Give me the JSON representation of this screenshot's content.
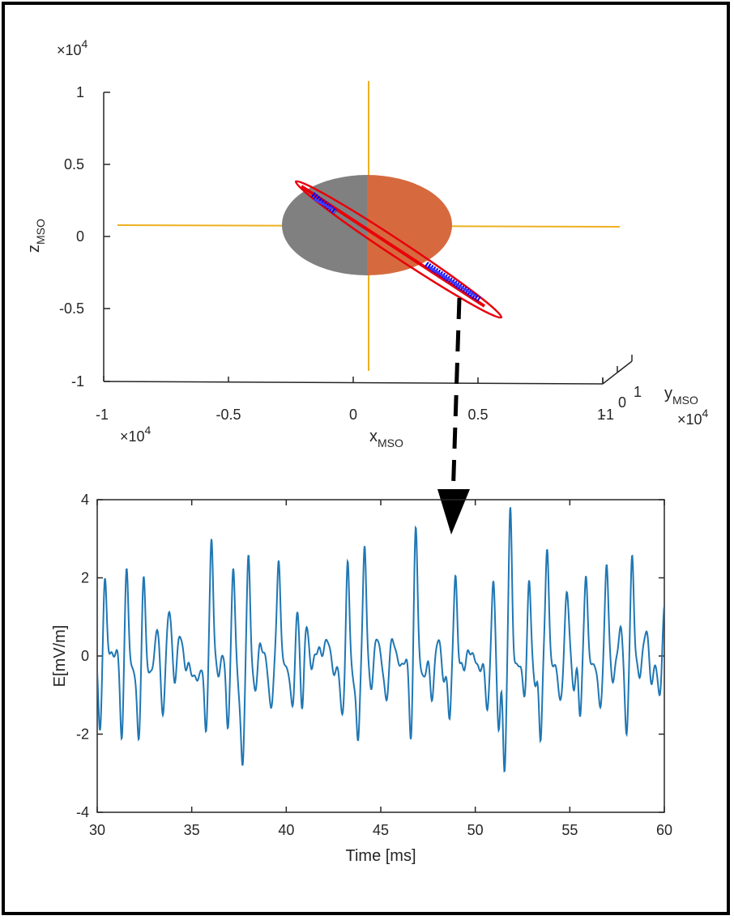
{
  "colors": {
    "frame": "#000000",
    "axis": "#262626",
    "orbit": "#e8000b",
    "measurement": "#0000ff",
    "dayside": "#d66a3e",
    "nightside": "#808080",
    "sun_line": "#edb120",
    "signal": "#1f77b4",
    "arrow": "#000000"
  },
  "chart_data": [
    {
      "type": "scatter",
      "title": "",
      "projection": "3d",
      "xlabel": "x",
      "xlabel_sub": "MSO",
      "ylabel": "y",
      "ylabel_sub": "MSO",
      "zlabel": "z",
      "zlabel_sub": "MSO",
      "x_exponent": "×10",
      "x_exponent_power": "4",
      "y_exponent": "×10",
      "y_exponent_power": "4",
      "z_exponent": "×10",
      "z_exponent_power": "4",
      "xlim": [
        -1,
        1.1
      ],
      "ylim": [
        -1,
        1
      ],
      "zlim": [
        -1,
        1
      ],
      "x_ticks": [
        "-1",
        "-0.5",
        "0",
        "0.5",
        "1"
      ],
      "y_ticks": [
        "-1",
        "0",
        "1"
      ],
      "z_ticks": [
        "1",
        "0.5",
        "0",
        "-0.5",
        "-1"
      ],
      "planet": {
        "center": [
          0,
          0,
          0
        ],
        "radius": 0.34,
        "dayside": "positive-x"
      },
      "orbit": {
        "description": "inclined elliptical orbit around planet"
      },
      "measurement_segments": 2
    },
    {
      "type": "line",
      "title": "",
      "xlabel": "Time [ms]",
      "ylabel": "E[mV/m]",
      "xlim": [
        30,
        60
      ],
      "ylim": [
        -4,
        4
      ],
      "x_ticks": [
        "30",
        "35",
        "40",
        "45",
        "50",
        "55",
        "60"
      ],
      "y_ticks": [
        "4",
        "2",
        "0",
        "-2",
        "-4"
      ],
      "pulses": [
        {
          "t": 30.15,
          "a": -1.9
        },
        {
          "t": 30.4,
          "a": 2.0
        },
        {
          "t": 30.95,
          "a": 0.2
        },
        {
          "t": 31.3,
          "a": -2.3
        },
        {
          "t": 31.55,
          "a": 2.4
        },
        {
          "t": 31.95,
          "a": -0.6
        },
        {
          "t": 32.2,
          "a": -2.1
        },
        {
          "t": 32.45,
          "a": 2.0
        },
        {
          "t": 32.75,
          "a": -0.5
        },
        {
          "t": 33.2,
          "a": 0.7
        },
        {
          "t": 33.45,
          "a": -1.5
        },
        {
          "t": 33.8,
          "a": 1.2
        },
        {
          "t": 34.1,
          "a": -0.7
        },
        {
          "t": 34.35,
          "a": 0.7
        },
        {
          "t": 34.7,
          "a": -0.4
        },
        {
          "t": 35.1,
          "a": -0.5
        },
        {
          "t": 35.35,
          "a": -0.7
        },
        {
          "t": 35.75,
          "a": -1.9
        },
        {
          "t": 36.05,
          "a": 2.9
        },
        {
          "t": 36.45,
          "a": -0.4
        },
        {
          "t": 36.9,
          "a": -1.8
        },
        {
          "t": 37.2,
          "a": 2.2
        },
        {
          "t": 37.5,
          "a": -0.9
        },
        {
          "t": 37.7,
          "a": -2.6
        },
        {
          "t": 38.0,
          "a": 2.4
        },
        {
          "t": 38.35,
          "a": -0.8
        },
        {
          "t": 38.6,
          "a": 0.2
        },
        {
          "t": 39.2,
          "a": -1.4
        },
        {
          "t": 39.6,
          "a": 2.6
        },
        {
          "t": 40.05,
          "a": -0.5
        },
        {
          "t": 40.35,
          "a": -1.4
        },
        {
          "t": 40.55,
          "a": 1.2
        },
        {
          "t": 40.85,
          "a": -1.6
        },
        {
          "t": 41.05,
          "a": 1.0
        },
        {
          "t": 41.35,
          "a": -0.4
        },
        {
          "t": 41.7,
          "a": 0.3
        },
        {
          "t": 42.2,
          "a": 0.4
        },
        {
          "t": 42.6,
          "a": -0.5
        },
        {
          "t": 42.95,
          "a": -1.5
        },
        {
          "t": 43.25,
          "a": 2.4
        },
        {
          "t": 43.55,
          "a": -0.7
        },
        {
          "t": 43.8,
          "a": -2.1
        },
        {
          "t": 44.15,
          "a": 2.7
        },
        {
          "t": 44.5,
          "a": -0.7
        },
        {
          "t": 44.8,
          "a": 0.4
        },
        {
          "t": 45.3,
          "a": -1.2
        },
        {
          "t": 45.65,
          "a": 0.5
        },
        {
          "t": 46.1,
          "a": -0.4
        },
        {
          "t": 46.6,
          "a": -2.1
        },
        {
          "t": 46.85,
          "a": 3.3
        },
        {
          "t": 47.3,
          "a": -0.6
        },
        {
          "t": 47.7,
          "a": -1.0
        },
        {
          "t": 48.0,
          "a": 0.4
        },
        {
          "t": 48.35,
          "a": -0.6
        },
        {
          "t": 48.65,
          "a": -1.6
        },
        {
          "t": 48.95,
          "a": 2.0
        },
        {
          "t": 49.4,
          "a": -0.4
        },
        {
          "t": 49.75,
          "a": 0.2
        },
        {
          "t": 50.2,
          "a": -0.5
        },
        {
          "t": 50.65,
          "a": -1.3
        },
        {
          "t": 50.95,
          "a": 1.9
        },
        {
          "t": 51.25,
          "a": -1.8
        },
        {
          "t": 51.55,
          "a": -3.1
        },
        {
          "t": 51.85,
          "a": 3.9
        },
        {
          "t": 52.2,
          "a": -0.4
        },
        {
          "t": 52.6,
          "a": -0.9
        },
        {
          "t": 52.85,
          "a": 1.9
        },
        {
          "t": 53.15,
          "a": -0.6
        },
        {
          "t": 53.45,
          "a": -2.2
        },
        {
          "t": 53.8,
          "a": 2.9
        },
        {
          "t": 54.2,
          "a": -0.4
        },
        {
          "t": 54.5,
          "a": -1.1
        },
        {
          "t": 54.85,
          "a": 1.5
        },
        {
          "t": 55.2,
          "a": -0.7
        },
        {
          "t": 55.55,
          "a": -1.6
        },
        {
          "t": 55.85,
          "a": 2.2
        },
        {
          "t": 56.25,
          "a": -0.4
        },
        {
          "t": 56.6,
          "a": -1.2
        },
        {
          "t": 56.95,
          "a": 2.3
        },
        {
          "t": 57.3,
          "a": -0.5
        },
        {
          "t": 57.7,
          "a": 0.6
        },
        {
          "t": 58.0,
          "a": -2.0
        },
        {
          "t": 58.3,
          "a": 2.4
        },
        {
          "t": 58.7,
          "a": -0.4
        },
        {
          "t": 59.05,
          "a": 0.6
        },
        {
          "t": 59.35,
          "a": -0.6
        },
        {
          "t": 59.75,
          "a": -1.2
        },
        {
          "t": 60.0,
          "a": 1.4
        }
      ],
      "series": [
        {
          "name": "E",
          "color": "#1f77b4"
        }
      ]
    }
  ]
}
